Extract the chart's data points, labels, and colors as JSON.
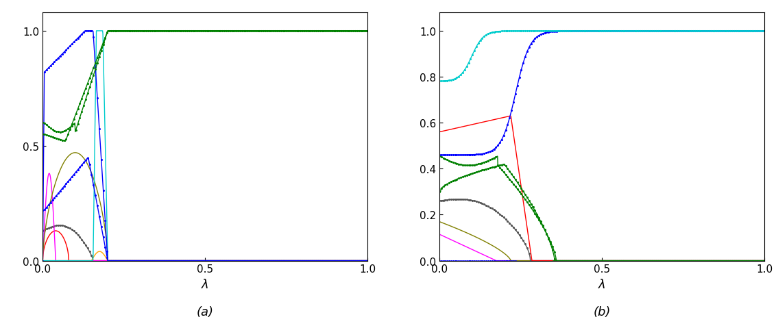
{
  "title_a": "(a)",
  "title_b": "(b)",
  "xlabel": "λ",
  "colors": {
    "blue": "#0000FF",
    "dark_green": "#008000",
    "cyan": "#00CCCC",
    "olive": "#808000",
    "magenta": "#FF00FF",
    "red": "#FF0000",
    "gray": "#555555",
    "orange": "#FFA500"
  },
  "lw": 1.0,
  "ms": 1.2
}
